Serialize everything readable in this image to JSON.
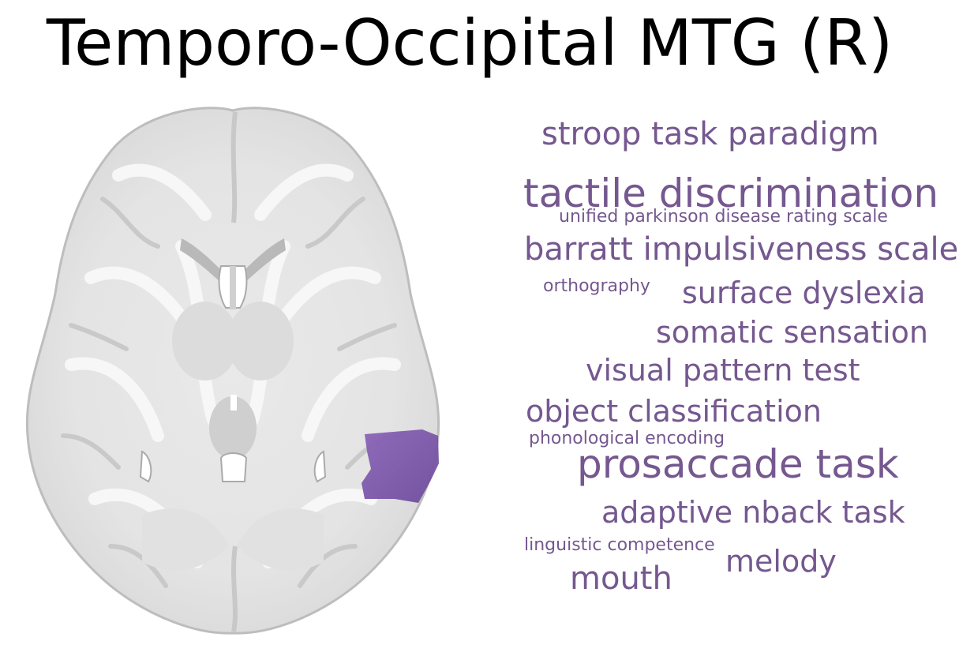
{
  "title": "Temporo-Occipital MTG (R)",
  "region_color": "#7a55a8",
  "term_color": "#75588f",
  "word_cloud": [
    {
      "text": "stroop task paradigm"
    },
    {
      "text": "tactile discrimination"
    },
    {
      "text": "unified parkinson disease rating scale"
    },
    {
      "text": "barratt impulsiveness scale"
    },
    {
      "text": "orthography"
    },
    {
      "text": "surface dyslexia"
    },
    {
      "text": "somatic sensation"
    },
    {
      "text": "visual pattern test"
    },
    {
      "text": "object classification"
    },
    {
      "text": "phonological encoding"
    },
    {
      "text": "prosaccade task"
    },
    {
      "text": "adaptive nback task"
    },
    {
      "text": "linguistic competence"
    },
    {
      "text": "melody"
    },
    {
      "text": "mouth"
    }
  ]
}
